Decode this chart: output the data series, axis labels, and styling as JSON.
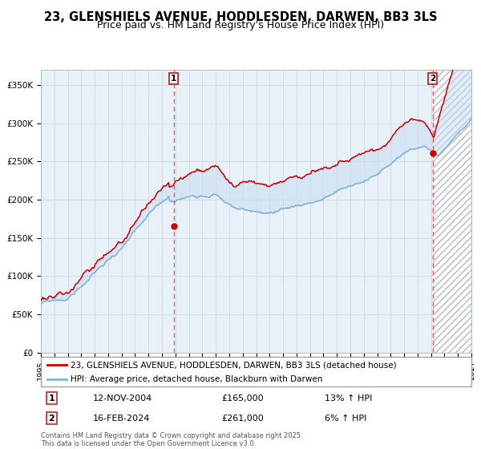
{
  "title": "23, GLENSHIELS AVENUE, HODDLESDEN, DARWEN, BB3 3LS",
  "subtitle": "Price paid vs. HM Land Registry's House Price Index (HPI)",
  "ylim": [
    0,
    370000
  ],
  "yticks": [
    0,
    50000,
    100000,
    150000,
    200000,
    250000,
    300000,
    350000
  ],
  "ytick_labels": [
    "£0",
    "£50K",
    "£100K",
    "£150K",
    "£200K",
    "£250K",
    "£300K",
    "£350K"
  ],
  "xstart_year": 1995,
  "xend_year": 2027,
  "marker1": {
    "year": 2004.87,
    "value": 165000,
    "label": "1",
    "date": "12-NOV-2004",
    "price": "£165,000",
    "hpi": "13% ↑ HPI"
  },
  "marker2": {
    "year": 2024.12,
    "value": 261000,
    "label": "2",
    "date": "16-FEB-2024",
    "price": "£261,000",
    "hpi": "6% ↑ HPI"
  },
  "line1_color": "#cc0000",
  "line2_color": "#7eb3d8",
  "fill_color": "#c8ddf0",
  "vline_color": "#e06060",
  "grid_color": "#d0d8e4",
  "bg_color": "#e8f0f8",
  "legend_line1": "23, GLENSHIELS AVENUE, HODDLESDEN, DARWEN, BB3 3LS (detached house)",
  "legend_line2": "HPI: Average price, detached house, Blackburn with Darwen",
  "footer": "Contains HM Land Registry data © Crown copyright and database right 2025.\nThis data is licensed under the Open Government Licence v3.0.",
  "title_fontsize": 10.5,
  "subtitle_fontsize": 9,
  "tick_fontsize": 7.5
}
